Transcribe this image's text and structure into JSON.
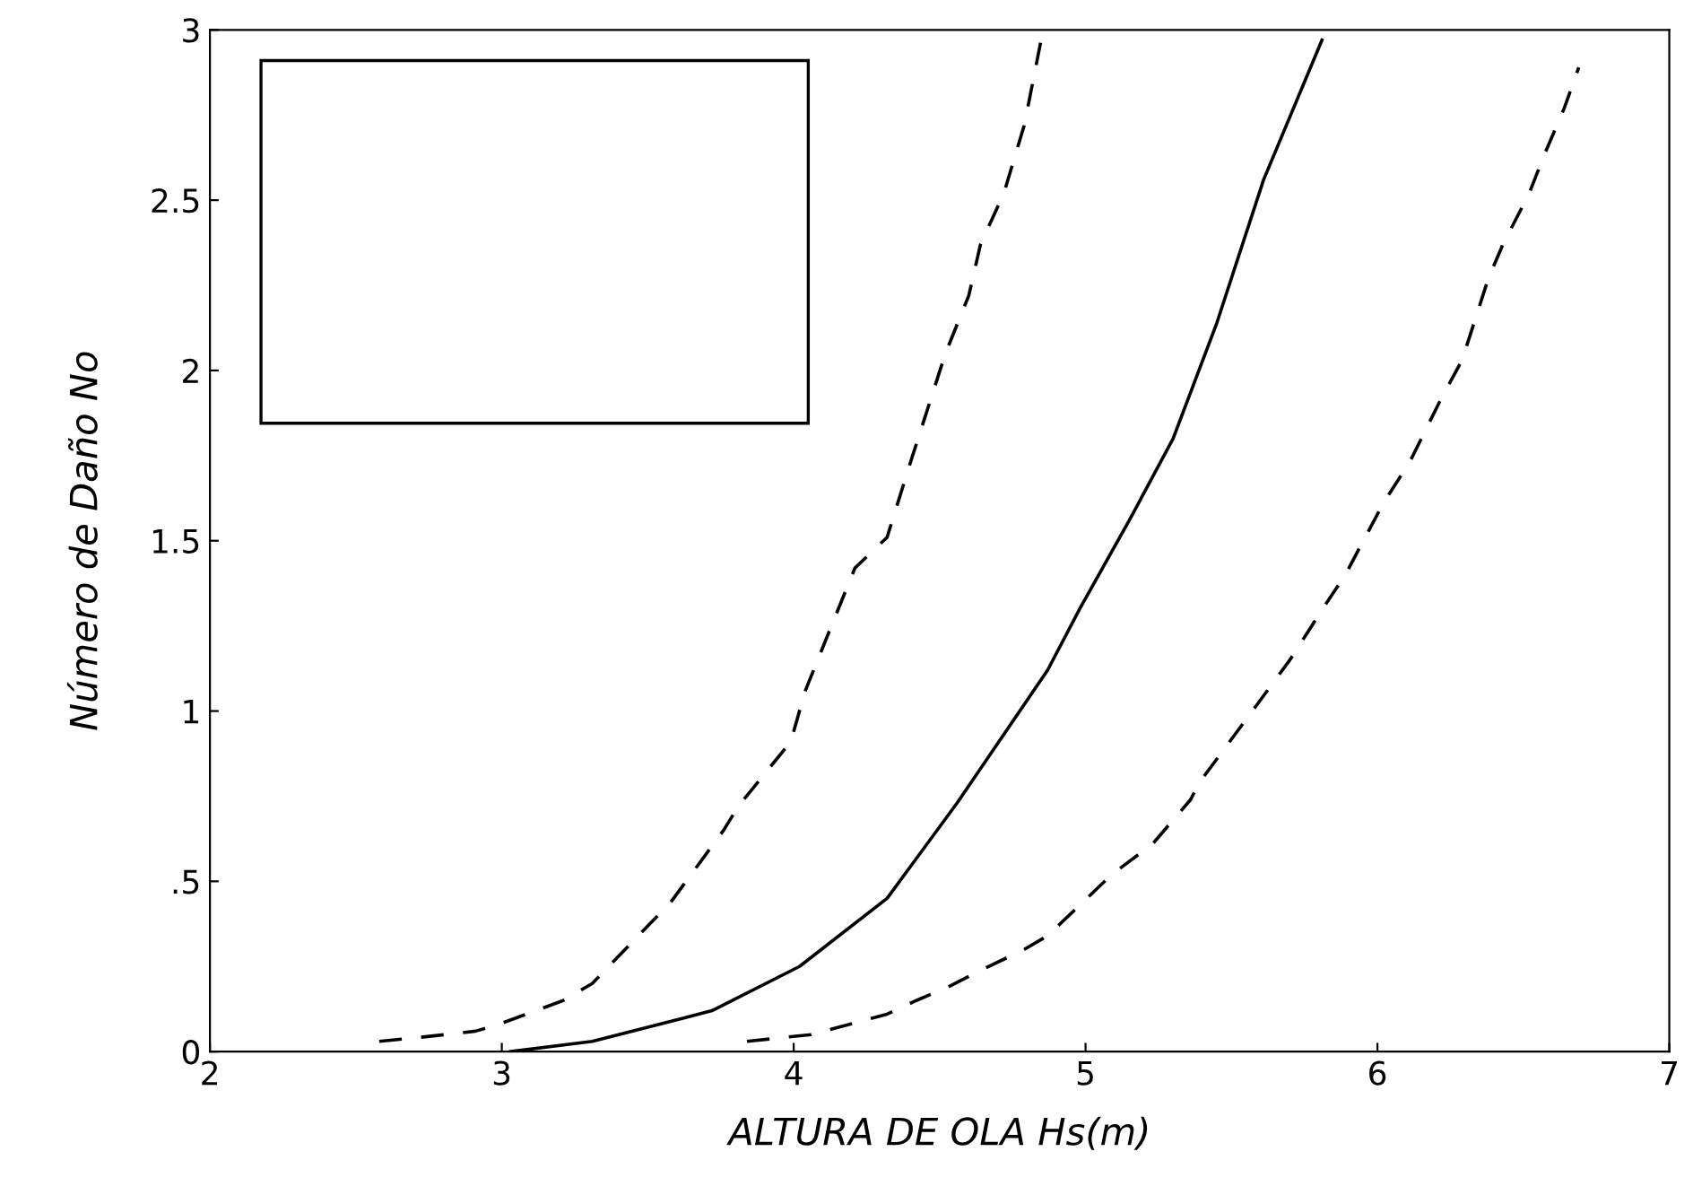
{
  "chart_data": {
    "type": "line",
    "xlabel": "ALTURA DE OLA Hs(m)",
    "ylabel": "Número de Daño No",
    "xlim": [
      2,
      7
    ],
    "xticks": [
      2,
      3,
      4,
      5,
      6,
      7
    ],
    "ylim": [
      0,
      3
    ],
    "yticks": [
      0,
      {
        "value": 0.5,
        "label": ".5"
      },
      1,
      1.5,
      2,
      2.5,
      3
    ],
    "grid": false,
    "legend": false,
    "marker": "none",
    "series": [
      {
        "color": "#000000",
        "line_style": "dashed",
        "x": [
          2.58,
          2.7,
          2.91,
          2.99,
          3.21,
          3.31,
          3.49,
          3.58,
          3.76,
          3.81,
          3.99,
          4.04,
          4.12,
          4.21,
          4.32,
          4.4,
          4.46,
          4.52,
          4.6,
          4.64,
          4.72,
          4.79,
          4.85
        ],
        "values": [
          0.03,
          0.04,
          0.06,
          0.08,
          0.15,
          0.2,
          0.36,
          0.44,
          0.65,
          0.72,
          0.91,
          1.06,
          1.23,
          1.42,
          1.51,
          1.73,
          1.89,
          2.05,
          2.22,
          2.37,
          2.52,
          2.72,
          2.98
        ]
      },
      {
        "color": "#000000",
        "line_style": "solid",
        "x": [
          3.03,
          3.31,
          3.72,
          4.02,
          4.32,
          4.56,
          4.87,
          4.98,
          5.15,
          5.3,
          5.45,
          5.61,
          5.81
        ],
        "values": [
          0,
          0.03,
          0.12,
          0.25,
          0.45,
          0.73,
          1.12,
          1.3,
          1.56,
          1.8,
          2.14,
          2.56,
          2.97
        ]
      },
      {
        "color": "#000000",
        "line_style": "dashed",
        "x": [
          3.84,
          4.06,
          4.32,
          4.42,
          4.53,
          4.62,
          4.79,
          4.87,
          5.09,
          5.23,
          5.36,
          5.39,
          5.58,
          5.7,
          5.82,
          5.89,
          6.02,
          6.11,
          6.22,
          6.29,
          6.38,
          6.43,
          6.52,
          6.57,
          6.64,
          6.69
        ],
        "values": [
          0.03,
          0.05,
          0.11,
          0.15,
          0.19,
          0.23,
          0.3,
          0.34,
          0.52,
          0.61,
          0.74,
          0.79,
          1.01,
          1.15,
          1.31,
          1.4,
          1.61,
          1.73,
          1.92,
          2.03,
          2.27,
          2.37,
          2.52,
          2.63,
          2.77,
          2.89
        ]
      }
    ]
  }
}
